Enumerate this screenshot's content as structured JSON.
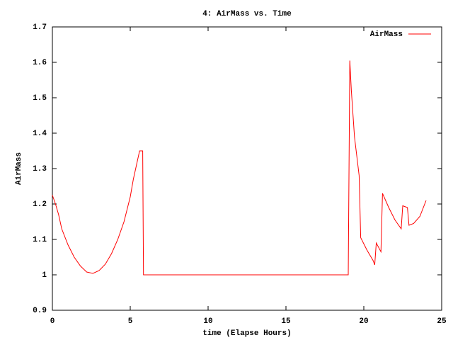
{
  "chart_data": {
    "type": "line",
    "title": "4: AirMass vs. Time",
    "x_label": "time (Elapse Hours)",
    "y_label": "AirMass",
    "x": [
      0,
      0.2,
      0.4,
      0.6,
      1.0,
      1.4,
      1.8,
      2.2,
      2.6,
      3.0,
      3.4,
      3.8,
      4.2,
      4.6,
      5.0,
      5.2,
      5.4,
      5.6,
      5.8,
      5.85,
      19.0,
      19.1,
      19.2,
      19.4,
      19.7,
      19.8,
      20.2,
      20.6,
      20.7,
      20.8,
      21.1,
      21.2,
      21.6,
      22.0,
      22.4,
      22.5,
      22.8,
      22.9,
      23.2,
      23.6,
      24.0
    ],
    "series": [
      {
        "name": "AirMass",
        "color": "#ff0000",
        "values": [
          1.225,
          1.2,
          1.17,
          1.13,
          1.085,
          1.05,
          1.025,
          1.008,
          1.004,
          1.012,
          1.03,
          1.06,
          1.1,
          1.15,
          1.22,
          1.27,
          1.31,
          1.35,
          1.35,
          1.0,
          1.0,
          1.605,
          1.52,
          1.39,
          1.28,
          1.105,
          1.07,
          1.04,
          1.028,
          1.09,
          1.065,
          1.23,
          1.19,
          1.155,
          1.13,
          1.195,
          1.19,
          1.14,
          1.145,
          1.165,
          1.21
        ]
      }
    ],
    "xlim": [
      0,
      25
    ],
    "xticks": [
      0,
      5,
      10,
      15,
      20,
      25
    ],
    "ylim": [
      0.9,
      1.7
    ],
    "yticks": [
      0.9,
      1,
      1.1,
      1.2,
      1.3,
      1.4,
      1.5,
      1.6,
      1.7
    ],
    "grid": false,
    "legend": "top-right"
  }
}
